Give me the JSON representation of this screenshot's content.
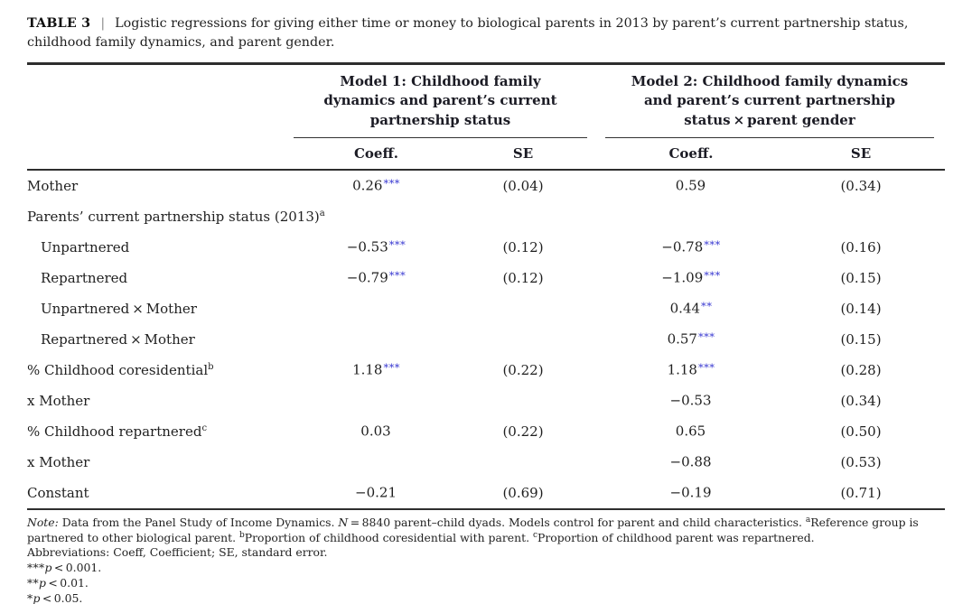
{
  "colors": {
    "accent_star": "#3434d0",
    "text": "#1f1f1f",
    "rule": "#2e2e2e"
  },
  "title": {
    "label": "TABLE 3",
    "divider": "|",
    "caption": "Logistic regressions for giving either time or money to biological parents in 2013 by parent’s current partnership status, childhood family dynamics, and parent gender."
  },
  "header": {
    "model1": {
      "lines": [
        "Model 1: Childhood family",
        "dynamics and parent’s current",
        "partnership status"
      ],
      "coeff": "Coeff.",
      "se": "SE"
    },
    "model2": {
      "lines": [
        "Model 2: Childhood family dynamics",
        "and parent’s current partnership",
        "status × parent gender"
      ],
      "coeff": "Coeff.",
      "se": "SE"
    }
  },
  "rows": [
    {
      "label": "Mother",
      "sup": "",
      "indent": 0,
      "m1c": "0.26",
      "m1s": "***",
      "m1se": "(0.04)",
      "m2c": "0.59",
      "m2s": "",
      "m2se": "(0.34)"
    },
    {
      "label": "Parents’ current partnership status (2013)",
      "sup": "a",
      "indent": 0,
      "m1c": "",
      "m1s": "",
      "m1se": "",
      "m2c": "",
      "m2s": "",
      "m2se": ""
    },
    {
      "label": "Unpartnered",
      "sup": "",
      "indent": 1,
      "m1c": "−0.53",
      "m1s": "***",
      "m1se": "(0.12)",
      "m2c": "−0.78",
      "m2s": "***",
      "m2se": "(0.16)"
    },
    {
      "label": "Repartnered",
      "sup": "",
      "indent": 1,
      "m1c": "−0.79",
      "m1s": "***",
      "m1se": "(0.12)",
      "m2c": "−1.09",
      "m2s": "***",
      "m2se": "(0.15)"
    },
    {
      "label": "Unpartnered × Mother",
      "sup": "",
      "indent": 1,
      "m1c": "",
      "m1s": "",
      "m1se": "",
      "m2c": "0.44",
      "m2s": "**",
      "m2se": "(0.14)"
    },
    {
      "label": "Repartnered × Mother",
      "sup": "",
      "indent": 1,
      "m1c": "",
      "m1s": "",
      "m1se": "",
      "m2c": "0.57",
      "m2s": "***",
      "m2se": "(0.15)"
    },
    {
      "label": "% Childhood coresidential",
      "sup": "b",
      "indent": 0,
      "m1c": "1.18",
      "m1s": "***",
      "m1se": "(0.22)",
      "m2c": "1.18",
      "m2s": "***",
      "m2se": "(0.28)"
    },
    {
      "label": "x Mother",
      "sup": "",
      "indent": 0,
      "m1c": "",
      "m1s": "",
      "m1se": "",
      "m2c": "−0.53",
      "m2s": "",
      "m2se": "(0.34)"
    },
    {
      "label": "% Childhood repartnered",
      "sup": "c",
      "indent": 0,
      "m1c": "0.03",
      "m1s": "",
      "m1se": "(0.22)",
      "m2c": "0.65",
      "m2s": "",
      "m2se": "(0.50)"
    },
    {
      "label": "x Mother",
      "sup": "",
      "indent": 0,
      "m1c": "",
      "m1s": "",
      "m1se": "",
      "m2c": "−0.88",
      "m2s": "",
      "m2se": "(0.53)"
    },
    {
      "label": "Constant",
      "sup": "",
      "indent": 0,
      "m1c": "−0.21",
      "m1s": "",
      "m1se": "(0.69)",
      "m2c": "−0.19",
      "m2s": "",
      "m2se": "(0.71)"
    }
  ],
  "footnotes": {
    "note_label": "Note:",
    "note_1": " Data from the Panel Study of Income Dynamics. ",
    "note_n": "N",
    "note_2": " = 8840 parent–child dyads. Models control for parent and child characteristics. ",
    "sup_a": "a",
    "note_3": "Reference group is partnered to other biological parent. ",
    "sup_b": "b",
    "note_4": "Proportion of childhood coresidential with parent. ",
    "sup_c": "c",
    "note_5": "Proportion of childhood parent was repartnered.",
    "abbreviations": "Abbreviations: Coeff, Coefficient; SE, standard error.",
    "sig": [
      {
        "stars": "***",
        "p": "p",
        "text": " < 0.001."
      },
      {
        "stars": "**",
        "p": "p",
        "text": " < 0.01."
      },
      {
        "stars": "*",
        "p": "p",
        "text": " < 0.05."
      }
    ]
  }
}
